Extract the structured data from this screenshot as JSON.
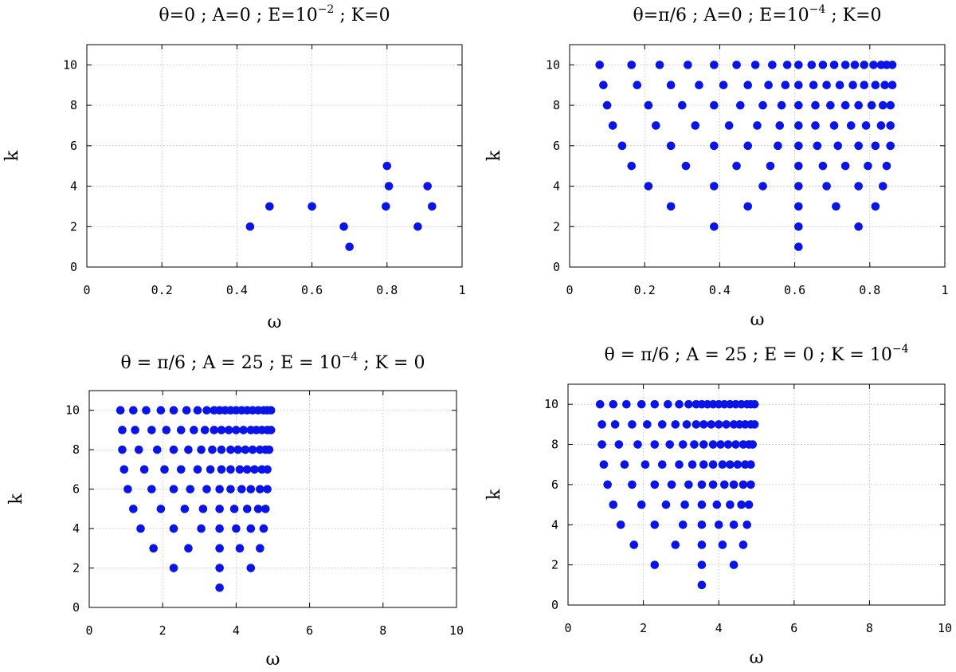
{
  "chart_data": [
    {
      "type": "scatter",
      "title": {
        "main": "θ=0 ; A=0 ; E=10",
        "sup": "−2",
        "tail": " ; K=0"
      },
      "xlabel": "ω",
      "ylabel": "k",
      "xlim": [
        0,
        1
      ],
      "ylim": [
        0,
        11
      ],
      "xticks": [
        0,
        0.2,
        0.4,
        0.6,
        0.8,
        1
      ],
      "xtick_labels": [
        "0",
        "0.2",
        "0.4",
        "0.6",
        "0.8",
        "1"
      ],
      "yticks": [
        0,
        2,
        4,
        6,
        8,
        10
      ],
      "ytick_labels": [
        "0",
        "2",
        "4",
        "6",
        "8",
        "10"
      ],
      "grid": true,
      "color": "#0a14e6",
      "points": [
        [
          0.435,
          2
        ],
        [
          0.487,
          3
        ],
        [
          0.6,
          3
        ],
        [
          0.685,
          2
        ],
        [
          0.7,
          1
        ],
        [
          0.797,
          3
        ],
        [
          0.8,
          5
        ],
        [
          0.805,
          4
        ],
        [
          0.882,
          2
        ],
        [
          0.908,
          4
        ],
        [
          0.92,
          3
        ]
      ]
    },
    {
      "type": "scatter",
      "title": {
        "main": "θ=π/6 ; A=0 ; E=10",
        "sup": "−4",
        "tail": " ; K=0"
      },
      "xlabel": "ω",
      "ylabel": "k",
      "xlim": [
        0,
        1
      ],
      "ylim": [
        0,
        11
      ],
      "xticks": [
        0,
        0.2,
        0.4,
        0.6,
        0.8,
        1
      ],
      "xtick_labels": [
        "0",
        "0.2",
        "0.4",
        "0.6",
        "0.8",
        "1"
      ],
      "yticks": [
        0,
        2,
        4,
        6,
        8,
        10
      ],
      "ytick_labels": [
        "0",
        "2",
        "4",
        "6",
        "8",
        "10"
      ],
      "grid": true,
      "color": "#0a14e6",
      "points": [
        [
          0.61,
          1
        ],
        [
          0.385,
          2
        ],
        [
          0.61,
          2
        ],
        [
          0.77,
          2
        ],
        [
          0.27,
          3
        ],
        [
          0.475,
          3
        ],
        [
          0.61,
          3
        ],
        [
          0.71,
          3
        ],
        [
          0.815,
          3
        ],
        [
          0.21,
          4
        ],
        [
          0.385,
          4
        ],
        [
          0.515,
          4
        ],
        [
          0.61,
          4
        ],
        [
          0.685,
          4
        ],
        [
          0.77,
          4
        ],
        [
          0.835,
          4
        ],
        [
          0.165,
          5
        ],
        [
          0.31,
          5
        ],
        [
          0.445,
          5
        ],
        [
          0.535,
          5
        ],
        [
          0.61,
          5
        ],
        [
          0.675,
          5
        ],
        [
          0.735,
          5
        ],
        [
          0.795,
          5
        ],
        [
          0.845,
          5
        ],
        [
          0.14,
          6
        ],
        [
          0.27,
          6
        ],
        [
          0.385,
          6
        ],
        [
          0.475,
          6
        ],
        [
          0.555,
          6
        ],
        [
          0.61,
          6
        ],
        [
          0.66,
          6
        ],
        [
          0.715,
          6
        ],
        [
          0.77,
          6
        ],
        [
          0.815,
          6
        ],
        [
          0.855,
          6
        ],
        [
          0.115,
          7
        ],
        [
          0.23,
          7
        ],
        [
          0.335,
          7
        ],
        [
          0.425,
          7
        ],
        [
          0.5,
          7
        ],
        [
          0.56,
          7
        ],
        [
          0.61,
          7
        ],
        [
          0.655,
          7
        ],
        [
          0.705,
          7
        ],
        [
          0.75,
          7
        ],
        [
          0.79,
          7
        ],
        [
          0.83,
          7
        ],
        [
          0.855,
          7
        ],
        [
          0.1,
          8
        ],
        [
          0.21,
          8
        ],
        [
          0.3,
          8
        ],
        [
          0.385,
          8
        ],
        [
          0.455,
          8
        ],
        [
          0.515,
          8
        ],
        [
          0.565,
          8
        ],
        [
          0.61,
          8
        ],
        [
          0.655,
          8
        ],
        [
          0.695,
          8
        ],
        [
          0.735,
          8
        ],
        [
          0.77,
          8
        ],
        [
          0.805,
          8
        ],
        [
          0.835,
          8
        ],
        [
          0.855,
          8
        ],
        [
          0.09,
          9
        ],
        [
          0.18,
          9
        ],
        [
          0.27,
          9
        ],
        [
          0.345,
          9
        ],
        [
          0.41,
          9
        ],
        [
          0.475,
          9
        ],
        [
          0.53,
          9
        ],
        [
          0.575,
          9
        ],
        [
          0.61,
          9
        ],
        [
          0.65,
          9
        ],
        [
          0.685,
          9
        ],
        [
          0.72,
          9
        ],
        [
          0.755,
          9
        ],
        [
          0.785,
          9
        ],
        [
          0.815,
          9
        ],
        [
          0.84,
          9
        ],
        [
          0.86,
          9
        ],
        [
          0.08,
          10
        ],
        [
          0.165,
          10
        ],
        [
          0.24,
          10
        ],
        [
          0.315,
          10
        ],
        [
          0.385,
          10
        ],
        [
          0.445,
          10
        ],
        [
          0.495,
          10
        ],
        [
          0.54,
          10
        ],
        [
          0.58,
          10
        ],
        [
          0.61,
          10
        ],
        [
          0.645,
          10
        ],
        [
          0.675,
          10
        ],
        [
          0.705,
          10
        ],
        [
          0.735,
          10
        ],
        [
          0.76,
          10
        ],
        [
          0.785,
          10
        ],
        [
          0.81,
          10
        ],
        [
          0.83,
          10
        ],
        [
          0.845,
          10
        ],
        [
          0.86,
          10
        ]
      ]
    },
    {
      "type": "scatter",
      "title": {
        "main": "θ = π/6 ; A = 25 ; E = 10",
        "sup": "−4",
        "tail": " ; K = 0"
      },
      "xlabel": "ω",
      "ylabel": "k",
      "xlim": [
        0,
        10
      ],
      "ylim": [
        0,
        11
      ],
      "xticks": [
        0,
        2,
        4,
        6,
        8,
        10
      ],
      "xtick_labels": [
        "0",
        "2",
        "4",
        "6",
        "8",
        "10"
      ],
      "yticks": [
        0,
        2,
        4,
        6,
        8,
        10
      ],
      "ytick_labels": [
        "0",
        "2",
        "4",
        "6",
        "8",
        "10"
      ],
      "grid": true,
      "color": "#0a14e6",
      "points": [
        [
          3.55,
          1
        ],
        [
          2.3,
          2
        ],
        [
          3.55,
          2
        ],
        [
          4.4,
          2
        ],
        [
          1.75,
          3
        ],
        [
          2.7,
          3
        ],
        [
          3.55,
          3
        ],
        [
          4.1,
          3
        ],
        [
          4.65,
          3
        ],
        [
          1.4,
          4
        ],
        [
          2.3,
          4
        ],
        [
          3.05,
          4
        ],
        [
          3.55,
          4
        ],
        [
          4.0,
          4
        ],
        [
          4.4,
          4
        ],
        [
          4.75,
          4
        ],
        [
          1.2,
          5
        ],
        [
          1.95,
          5
        ],
        [
          2.6,
          5
        ],
        [
          3.1,
          5
        ],
        [
          3.55,
          5
        ],
        [
          3.95,
          5
        ],
        [
          4.3,
          5
        ],
        [
          4.6,
          5
        ],
        [
          4.8,
          5
        ],
        [
          1.05,
          6
        ],
        [
          1.7,
          6
        ],
        [
          2.3,
          6
        ],
        [
          2.75,
          6
        ],
        [
          3.2,
          6
        ],
        [
          3.55,
          6
        ],
        [
          3.85,
          6
        ],
        [
          4.15,
          6
        ],
        [
          4.4,
          6
        ],
        [
          4.65,
          6
        ],
        [
          4.85,
          6
        ],
        [
          0.95,
          7
        ],
        [
          1.5,
          7
        ],
        [
          2.05,
          7
        ],
        [
          2.5,
          7
        ],
        [
          2.95,
          7
        ],
        [
          3.3,
          7
        ],
        [
          3.6,
          7
        ],
        [
          3.85,
          7
        ],
        [
          4.1,
          7
        ],
        [
          4.3,
          7
        ],
        [
          4.5,
          7
        ],
        [
          4.7,
          7
        ],
        [
          4.85,
          7
        ],
        [
          0.9,
          8
        ],
        [
          1.35,
          8
        ],
        [
          1.85,
          8
        ],
        [
          2.3,
          8
        ],
        [
          2.7,
          8
        ],
        [
          3.05,
          8
        ],
        [
          3.35,
          8
        ],
        [
          3.6,
          8
        ],
        [
          3.85,
          8
        ],
        [
          4.05,
          8
        ],
        [
          4.25,
          8
        ],
        [
          4.45,
          8
        ],
        [
          4.65,
          8
        ],
        [
          4.8,
          8
        ],
        [
          4.9,
          8
        ],
        [
          0.9,
          9
        ],
        [
          1.25,
          9
        ],
        [
          1.7,
          9
        ],
        [
          2.1,
          9
        ],
        [
          2.5,
          9
        ],
        [
          2.85,
          9
        ],
        [
          3.15,
          9
        ],
        [
          3.4,
          9
        ],
        [
          3.6,
          9
        ],
        [
          3.8,
          9
        ],
        [
          4.0,
          9
        ],
        [
          4.2,
          9
        ],
        [
          4.4,
          9
        ],
        [
          4.55,
          9
        ],
        [
          4.7,
          9
        ],
        [
          4.85,
          9
        ],
        [
          4.95,
          9
        ],
        [
          0.85,
          10
        ],
        [
          1.2,
          10
        ],
        [
          1.55,
          10
        ],
        [
          1.95,
          10
        ],
        [
          2.3,
          10
        ],
        [
          2.65,
          10
        ],
        [
          2.95,
          10
        ],
        [
          3.2,
          10
        ],
        [
          3.4,
          10
        ],
        [
          3.55,
          10
        ],
        [
          3.7,
          10
        ],
        [
          3.85,
          10
        ],
        [
          4.0,
          10
        ],
        [
          4.15,
          10
        ],
        [
          4.3,
          10
        ],
        [
          4.45,
          10
        ],
        [
          4.6,
          10
        ],
        [
          4.75,
          10
        ],
        [
          4.85,
          10
        ],
        [
          4.95,
          10
        ]
      ]
    },
    {
      "type": "scatter",
      "title": {
        "main": "θ = π/6 ; A = 25 ; E = 0 ; K = 10",
        "sup": "−4",
        "tail": ""
      },
      "xlabel": "ω",
      "ylabel": "k",
      "xlim": [
        0,
        10
      ],
      "ylim": [
        0,
        11
      ],
      "xticks": [
        0,
        2,
        4,
        6,
        8,
        10
      ],
      "xtick_labels": [
        "0",
        "2",
        "4",
        "6",
        "8",
        "10"
      ],
      "yticks": [
        0,
        2,
        4,
        6,
        8,
        10
      ],
      "ytick_labels": [
        "0",
        "2",
        "4",
        "6",
        "8",
        "10"
      ],
      "grid": true,
      "color": "#0a14e6",
      "points": [
        [
          3.55,
          1
        ],
        [
          2.3,
          2
        ],
        [
          3.55,
          2
        ],
        [
          4.4,
          2
        ],
        [
          1.75,
          3
        ],
        [
          2.85,
          3
        ],
        [
          3.55,
          3
        ],
        [
          4.1,
          3
        ],
        [
          4.65,
          3
        ],
        [
          1.4,
          4
        ],
        [
          2.3,
          4
        ],
        [
          3.05,
          4
        ],
        [
          3.55,
          4
        ],
        [
          4.0,
          4
        ],
        [
          4.4,
          4
        ],
        [
          4.75,
          4
        ],
        [
          1.2,
          5
        ],
        [
          1.95,
          5
        ],
        [
          2.6,
          5
        ],
        [
          3.1,
          5
        ],
        [
          3.55,
          5
        ],
        [
          3.95,
          5
        ],
        [
          4.3,
          5
        ],
        [
          4.6,
          5
        ],
        [
          4.8,
          5
        ],
        [
          1.05,
          6
        ],
        [
          1.7,
          6
        ],
        [
          2.3,
          6
        ],
        [
          2.75,
          6
        ],
        [
          3.2,
          6
        ],
        [
          3.55,
          6
        ],
        [
          3.85,
          6
        ],
        [
          4.15,
          6
        ],
        [
          4.4,
          6
        ],
        [
          4.65,
          6
        ],
        [
          4.85,
          6
        ],
        [
          0.95,
          7
        ],
        [
          1.5,
          7
        ],
        [
          2.05,
          7
        ],
        [
          2.5,
          7
        ],
        [
          2.95,
          7
        ],
        [
          3.3,
          7
        ],
        [
          3.6,
          7
        ],
        [
          3.85,
          7
        ],
        [
          4.1,
          7
        ],
        [
          4.3,
          7
        ],
        [
          4.5,
          7
        ],
        [
          4.7,
          7
        ],
        [
          4.85,
          7
        ],
        [
          0.9,
          8
        ],
        [
          1.35,
          8
        ],
        [
          1.85,
          8
        ],
        [
          2.3,
          8
        ],
        [
          2.7,
          8
        ],
        [
          3.05,
          8
        ],
        [
          3.35,
          8
        ],
        [
          3.6,
          8
        ],
        [
          3.85,
          8
        ],
        [
          4.05,
          8
        ],
        [
          4.25,
          8
        ],
        [
          4.45,
          8
        ],
        [
          4.65,
          8
        ],
        [
          4.8,
          8
        ],
        [
          4.9,
          8
        ],
        [
          0.9,
          9
        ],
        [
          1.25,
          9
        ],
        [
          1.7,
          9
        ],
        [
          2.1,
          9
        ],
        [
          2.5,
          9
        ],
        [
          2.85,
          9
        ],
        [
          3.15,
          9
        ],
        [
          3.4,
          9
        ],
        [
          3.6,
          9
        ],
        [
          3.8,
          9
        ],
        [
          4.0,
          9
        ],
        [
          4.2,
          9
        ],
        [
          4.4,
          9
        ],
        [
          4.55,
          9
        ],
        [
          4.7,
          9
        ],
        [
          4.85,
          9
        ],
        [
          4.95,
          9
        ],
        [
          0.85,
          10
        ],
        [
          1.2,
          10
        ],
        [
          1.55,
          10
        ],
        [
          1.95,
          10
        ],
        [
          2.3,
          10
        ],
        [
          2.65,
          10
        ],
        [
          2.95,
          10
        ],
        [
          3.2,
          10
        ],
        [
          3.4,
          10
        ],
        [
          3.55,
          10
        ],
        [
          3.7,
          10
        ],
        [
          3.85,
          10
        ],
        [
          4.0,
          10
        ],
        [
          4.15,
          10
        ],
        [
          4.3,
          10
        ],
        [
          4.45,
          10
        ],
        [
          4.6,
          10
        ],
        [
          4.75,
          10
        ],
        [
          4.85,
          10
        ],
        [
          4.95,
          10
        ]
      ]
    }
  ]
}
